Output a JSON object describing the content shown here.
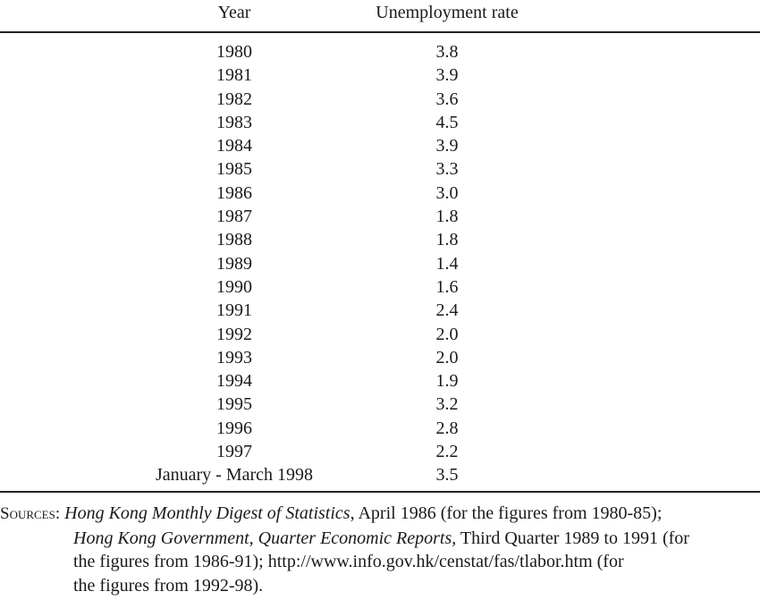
{
  "table": {
    "headers": {
      "year": "Year",
      "rate": "Unemployment rate"
    },
    "rows": [
      {
        "year": "1980",
        "rate": "3.8"
      },
      {
        "year": "1981",
        "rate": "3.9"
      },
      {
        "year": "1982",
        "rate": "3.6"
      },
      {
        "year": "1983",
        "rate": "4.5"
      },
      {
        "year": "1984",
        "rate": "3.9"
      },
      {
        "year": "1985",
        "rate": "3.3"
      },
      {
        "year": "1986",
        "rate": "3.0"
      },
      {
        "year": "1987",
        "rate": "1.8"
      },
      {
        "year": "1988",
        "rate": "1.8"
      },
      {
        "year": "1989",
        "rate": "1.4"
      },
      {
        "year": "1990",
        "rate": "1.6"
      },
      {
        "year": "1991",
        "rate": "2.4"
      },
      {
        "year": "1992",
        "rate": "2.0"
      },
      {
        "year": "1993",
        "rate": "2.0"
      },
      {
        "year": "1994",
        "rate": "1.9"
      },
      {
        "year": "1995",
        "rate": "3.2"
      },
      {
        "year": "1996",
        "rate": "2.8"
      },
      {
        "year": "1997",
        "rate": "2.2"
      },
      {
        "year": "January - March 1998",
        "rate": "3.5"
      }
    ]
  },
  "sources": {
    "label": "Sources:",
    "line1_italic": "Hong Kong Monthly Digest of Statistics",
    "line1_rest": ", April 1986 (for the figures from 1980-85);",
    "line2_italic": "Hong Kong Government, Quarter Economic Reports",
    "line2_rest": ", Third Quarter 1989 to 1991 (for",
    "line3": "the figures from 1986-91); http://www.info.gov.hk/censtat/fas/tlabor.htm (for",
    "line4": "the figures from 1992-98)."
  }
}
